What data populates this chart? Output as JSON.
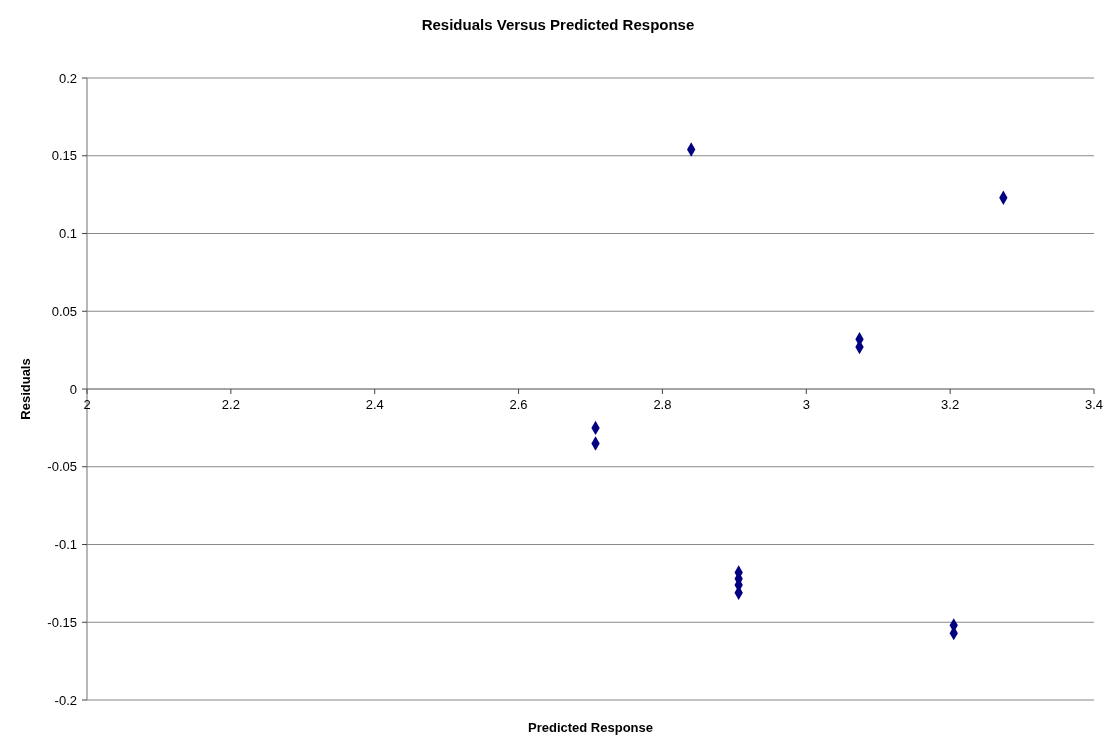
{
  "chart_data": {
    "type": "scatter",
    "title": "Residuals Versus Predicted Response",
    "xlabel": "Predicted Response",
    "ylabel": "Residuals",
    "series": [
      {
        "color": "#000080",
        "x": [
          2.707,
          2.707,
          2.84,
          2.906,
          2.906,
          2.906,
          2.906,
          3.074,
          3.074,
          3.205,
          3.205,
          3.274
        ],
        "values": [
          -0.025,
          -0.035,
          0.154,
          -0.118,
          -0.122,
          -0.126,
          -0.131,
          0.032,
          0.027,
          -0.152,
          -0.157,
          0.123
        ]
      }
    ],
    "xlim": [
      2,
      3.4
    ],
    "xticks": [
      2,
      2.2,
      2.4,
      2.6,
      2.8,
      3,
      3.2,
      3.4
    ],
    "ylim": [
      -0.2,
      0.2
    ],
    "yticks": [
      -0.2,
      -0.15,
      -0.1,
      -0.05,
      0,
      0.05,
      0.1,
      0.15,
      0.2
    ],
    "grid": "y",
    "marker": "diamond"
  }
}
